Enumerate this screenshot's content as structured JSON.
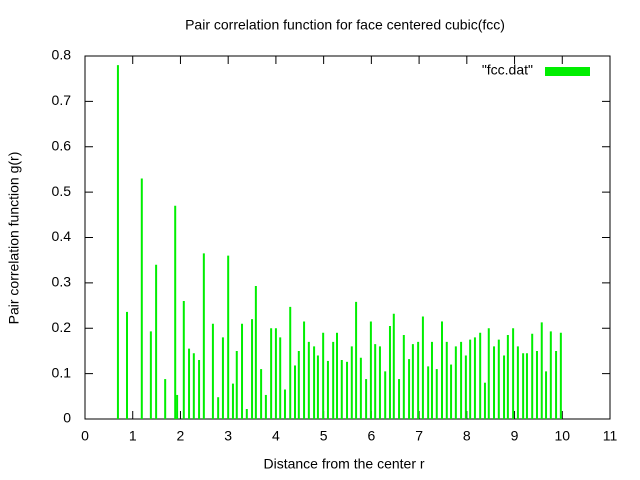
{
  "chart_data": {
    "type": "impulse",
    "title": "Pair correlation function for face centered cubic(fcc)",
    "xlabel": "Distance from the center r",
    "ylabel": "Pair correlation function g(r)",
    "xlim": [
      0,
      11
    ],
    "ylim": [
      0,
      0.8
    ],
    "xticks": [
      0,
      1,
      2,
      3,
      4,
      5,
      6,
      7,
      8,
      9,
      10,
      11
    ],
    "yticks": [
      0,
      0.1,
      0.2,
      0.3,
      0.4,
      0.5,
      0.6,
      0.7,
      0.8
    ],
    "legend": "top-right",
    "series": [
      {
        "name": "\"fcc.dat\"",
        "color": "#00ee00",
        "x": [
          0.69,
          0.88,
          1.19,
          1.38,
          1.49,
          1.68,
          1.89,
          1.93,
          2.07,
          2.18,
          2.28,
          2.39,
          2.49,
          2.68,
          2.79,
          2.89,
          3.0,
          3.1,
          3.18,
          3.29,
          3.39,
          3.5,
          3.58,
          3.69,
          3.79,
          3.9,
          4.0,
          4.09,
          4.19,
          4.3,
          4.4,
          4.48,
          4.59,
          4.69,
          4.8,
          4.88,
          4.99,
          5.09,
          5.2,
          5.28,
          5.38,
          5.49,
          5.59,
          5.68,
          5.78,
          5.89,
          5.99,
          6.08,
          6.18,
          6.29,
          6.39,
          6.47,
          6.58,
          6.68,
          6.79,
          6.87,
          6.98,
          7.08,
          7.19,
          7.27,
          7.37,
          7.48,
          7.58,
          7.67,
          7.77,
          7.88,
          7.98,
          8.07,
          8.17,
          8.28,
          8.38,
          8.46,
          8.57,
          8.67,
          8.78,
          8.86,
          8.97,
          9.07,
          9.18,
          9.26,
          9.37,
          9.47,
          9.57,
          9.66,
          9.76,
          9.87,
          9.97
        ],
        "values": [
          0.78,
          0.236,
          0.53,
          0.193,
          0.34,
          0.088,
          0.47,
          0.053,
          0.26,
          0.155,
          0.145,
          0.13,
          0.365,
          0.21,
          0.048,
          0.18,
          0.36,
          0.078,
          0.15,
          0.21,
          0.022,
          0.22,
          0.293,
          0.11,
          0.053,
          0.2,
          0.2,
          0.18,
          0.065,
          0.247,
          0.118,
          0.15,
          0.215,
          0.17,
          0.16,
          0.14,
          0.19,
          0.128,
          0.17,
          0.19,
          0.13,
          0.126,
          0.16,
          0.258,
          0.135,
          0.088,
          0.215,
          0.165,
          0.16,
          0.105,
          0.205,
          0.232,
          0.088,
          0.185,
          0.132,
          0.165,
          0.17,
          0.226,
          0.116,
          0.17,
          0.11,
          0.215,
          0.17,
          0.12,
          0.16,
          0.17,
          0.14,
          0.175,
          0.18,
          0.19,
          0.08,
          0.2,
          0.16,
          0.175,
          0.14,
          0.185,
          0.2,
          0.16,
          0.145,
          0.145,
          0.188,
          0.15,
          0.213,
          0.105,
          0.193,
          0.15,
          0.19
        ]
      }
    ]
  }
}
